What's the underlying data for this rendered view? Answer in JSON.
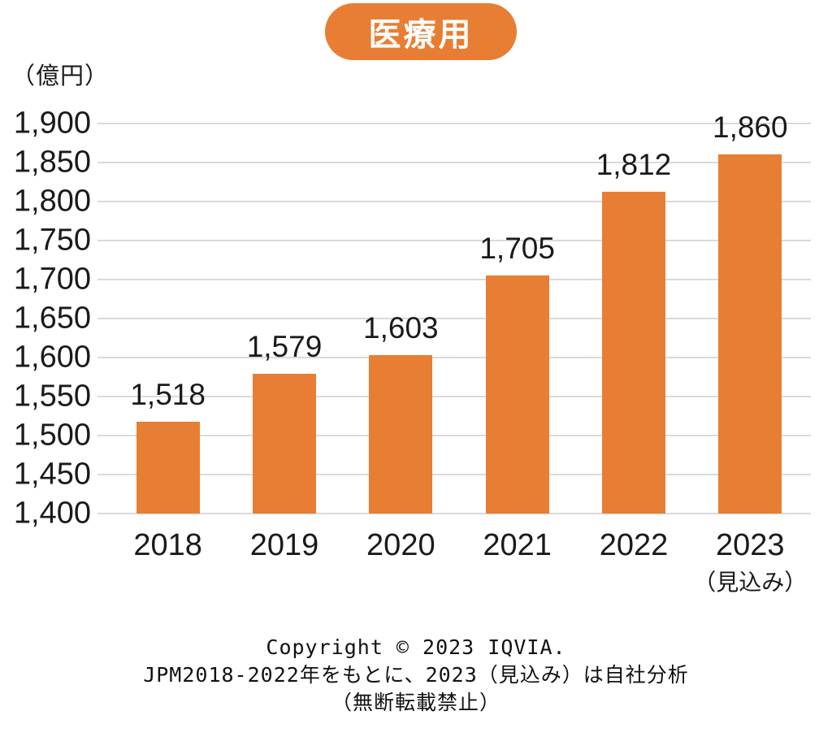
{
  "badge": {
    "label": "医療用",
    "color": "#E87E33"
  },
  "chart_data": {
    "type": "bar",
    "title": "医療用",
    "unit_label": "（億円）",
    "categories": [
      "2018",
      "2019",
      "2020",
      "2021",
      "2022",
      "2023"
    ],
    "category_sublabels": [
      "",
      "",
      "",
      "",
      "",
      "（見込み）"
    ],
    "values": [
      1518,
      1579,
      1603,
      1705,
      1812,
      1860
    ],
    "value_labels": [
      "1,518",
      "1,579",
      "1,603",
      "1,705",
      "1,812",
      "1,860"
    ],
    "ylim": [
      1400,
      1900
    ],
    "ytick_step": 50,
    "yticks": [
      "1,400",
      "1,450",
      "1,500",
      "1,550",
      "1,600",
      "1,650",
      "1,700",
      "1,750",
      "1,800",
      "1,850",
      "1,900"
    ],
    "grid": true,
    "legend": "none",
    "bar_color": "#E87E33",
    "gridline_color": "#dadada"
  },
  "footer": {
    "line1": "Copyright © 2023 IQVIA.",
    "line2": "JPM2018-2022年をもとに、2023（見込み）は自社分析",
    "line3": "（無断転載禁止）"
  }
}
